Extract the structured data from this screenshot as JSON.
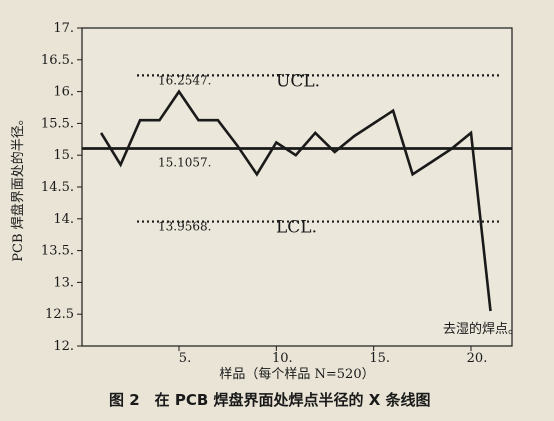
{
  "chart_data": {
    "type": "line",
    "title": "",
    "xlabel": "样品（每个样品 N=520）",
    "ylabel": "PCB 焊盘界面处的半径。",
    "xlim": [
      0,
      22
    ],
    "ylim": [
      12,
      17
    ],
    "x_ticks": [
      5,
      10,
      15,
      20
    ],
    "x_tick_labels": [
      "5.",
      "10.",
      "15.",
      "20."
    ],
    "y_ticks": [
      12,
      12.5,
      13,
      13.5,
      14,
      14.5,
      15,
      15.5,
      16,
      16.5,
      17
    ],
    "y_tick_labels": [
      "12.",
      "12.5",
      "13.",
      "13.5.",
      "14.",
      "14.5.",
      "15.",
      "15.5.",
      "16.",
      "16.5.",
      "17."
    ],
    "series": [
      {
        "x": [
          1,
          2,
          3,
          4,
          5,
          6,
          7,
          8,
          9,
          10,
          11,
          12,
          13,
          14,
          15,
          16,
          17,
          18,
          19,
          20,
          21
        ],
        "y": [
          15.35,
          14.85,
          15.55,
          15.55,
          16.0,
          15.55,
          15.55,
          15.15,
          14.7,
          15.2,
          15.0,
          15.35,
          15.05,
          15.3,
          15.5,
          15.7,
          14.7,
          14.9,
          15.1,
          15.35,
          12.55
        ]
      }
    ],
    "control_lines": [
      {
        "name": "UCL",
        "value": 16.2547,
        "label": "16.2547.",
        "tag": "UCL.",
        "style": "dotted"
      },
      {
        "name": "CL",
        "value": 15.1057,
        "label": "15.1057.",
        "tag": "",
        "style": "solid"
      },
      {
        "name": "LCL",
        "value": 13.9568,
        "label": "13.9568.",
        "tag": "LCL.",
        "style": "dotted"
      }
    ],
    "annotations": [
      {
        "text": "去湿的焊点。",
        "x": 20.9,
        "y": 12.4
      }
    ],
    "grid": false
  },
  "figure": {
    "caption": "图 2　在 PCB 焊盘界面处焊点半径的 X 条线图"
  }
}
